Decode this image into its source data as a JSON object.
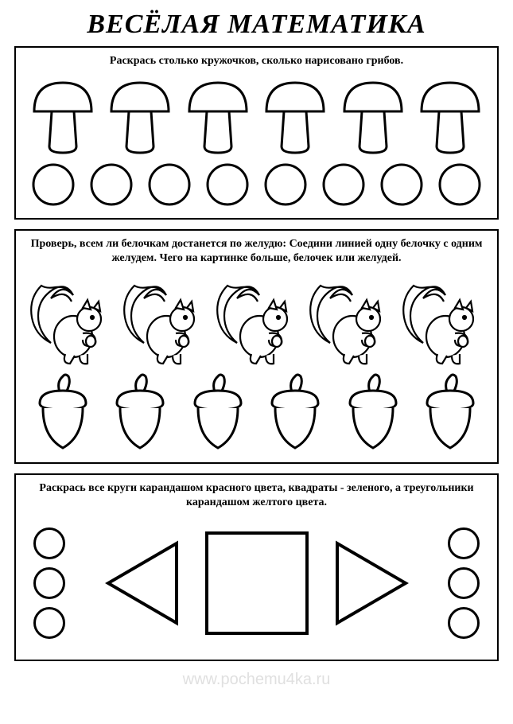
{
  "title": "ВЕСЁЛАЯ МАТЕМАТИКА",
  "panel1": {
    "instruction": "Раскрась столько кружочков, сколько нарисовано грибов.",
    "mushroom_count": 6,
    "circle_count": 8,
    "stroke": "#000000",
    "fill": "#ffffff",
    "stroke_width": 2
  },
  "panel2": {
    "instruction": "Проверь, всем ли белочкам достанется по желудю: Соедини линией одну белочку с одним желудем. Чего на картинке больше, белочек или желудей.",
    "squirrel_count": 5,
    "acorn_count": 6,
    "stroke": "#000000",
    "fill": "#ffffff",
    "stroke_width": 2
  },
  "panel3": {
    "instruction": "Раскрась все круги карандашом красного цвета, квадраты - зеленого, а треугольники карандашом желтого цвета.",
    "left_circles": 3,
    "right_circles": 3,
    "stroke": "#000000",
    "fill": "#ffffff",
    "circle_stroke_width": 3,
    "square_stroke_width": 4,
    "triangle_stroke_width": 4
  },
  "watermark": "www.pochemu4ka.ru",
  "colors": {
    "page_bg": "#ffffff",
    "text": "#000000",
    "watermark": "#e0e0e0"
  }
}
